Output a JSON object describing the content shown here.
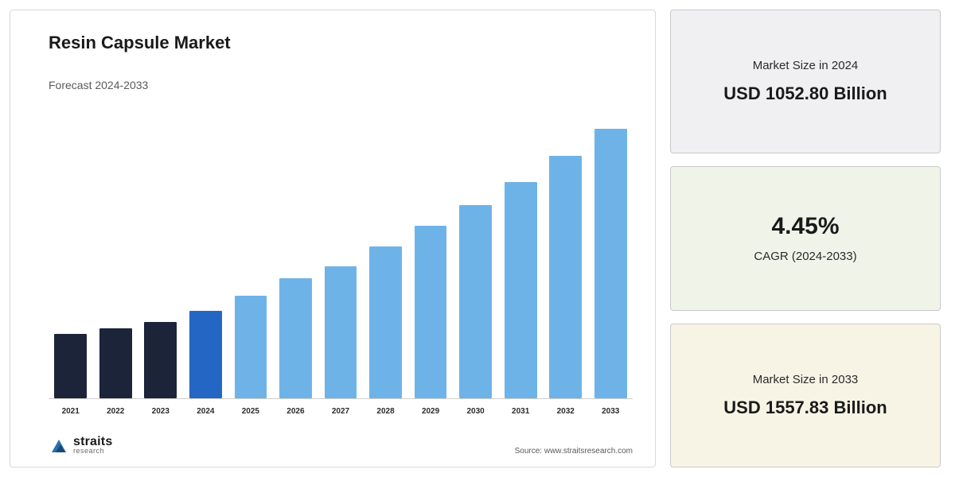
{
  "chart": {
    "type": "bar",
    "title": "Resin Capsule Market",
    "subtitle": "Forecast 2024-2033",
    "categories": [
      "2021",
      "2022",
      "2023",
      "2024",
      "2025",
      "2026",
      "2027",
      "2028",
      "2029",
      "2030",
      "2031",
      "2032",
      "2033"
    ],
    "values": [
      22,
      24,
      26,
      30,
      35,
      41,
      45,
      52,
      59,
      66,
      74,
      83,
      92
    ],
    "bar_colors": [
      "#1b2438",
      "#1b2438",
      "#1b2438",
      "#2366c4",
      "#6eb3e8",
      "#6eb3e8",
      "#6eb3e8",
      "#6eb3e8",
      "#6eb3e8",
      "#6eb3e8",
      "#6eb3e8",
      "#6eb3e8",
      "#6eb3e8"
    ],
    "ylim": [
      0,
      100
    ],
    "axis_color": "#cfcfcf",
    "background_color": "#ffffff",
    "bar_gap_pct": 2.2,
    "title_fontsize": 22,
    "subtitle_fontsize": 14,
    "xlabel_fontsize": 10
  },
  "brand": {
    "name": "straits",
    "sub": "research",
    "mark_color": "#2a6fb0"
  },
  "source": "Source: www.straitsresearch.com",
  "cards": [
    {
      "bg": "#f0f0f2",
      "label": "Market Size in 2024",
      "value": "USD 1052.80 Billion",
      "layout": "label-top"
    },
    {
      "bg": "#f0f4e8",
      "value": "4.45%",
      "label": "CAGR (2024-2033)",
      "layout": "value-top"
    },
    {
      "bg": "#f7f4e6",
      "label": "Market Size in 2033",
      "value": "USD 1557.83 Billion",
      "layout": "label-top"
    }
  ]
}
